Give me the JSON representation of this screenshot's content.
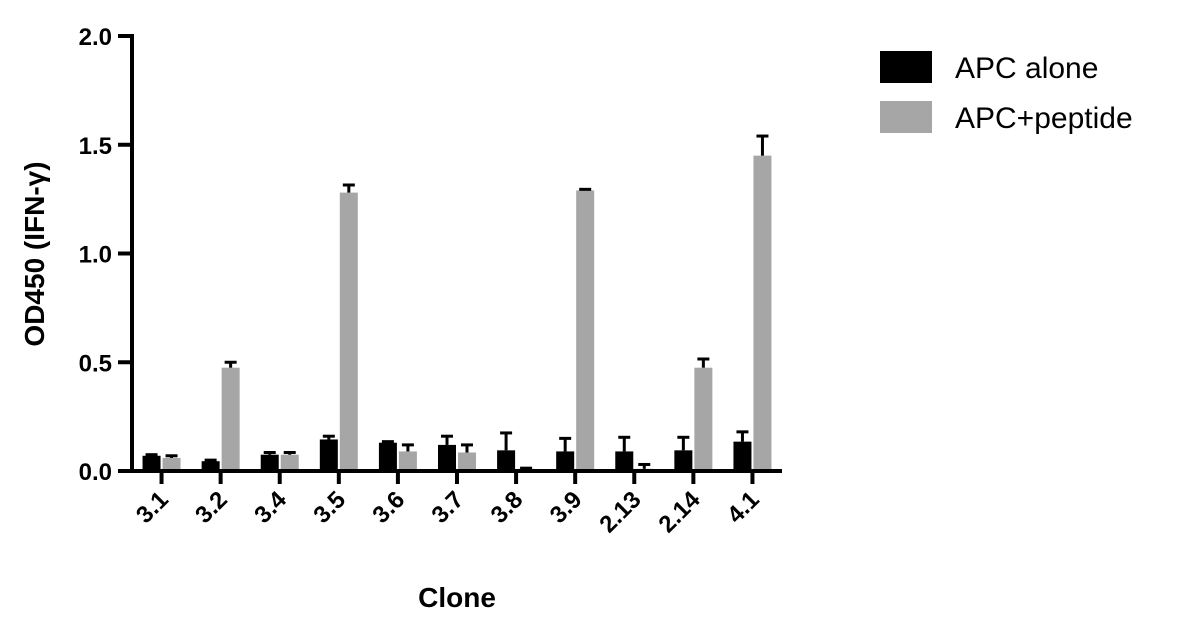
{
  "chart_data": {
    "type": "bar",
    "title": "",
    "xlabel": "Clone",
    "ylabel": "OD450 (IFN-γ)",
    "ylim": [
      0,
      2.0
    ],
    "yticks": [
      0.0,
      0.5,
      1.0,
      1.5,
      2.0
    ],
    "ytick_labels": [
      "0.0",
      "0.5",
      "1.0",
      "1.5",
      "2.0"
    ],
    "categories": [
      "3.1",
      "3.2",
      "3.4",
      "3.5",
      "3.6",
      "3.7",
      "3.8",
      "3.9",
      "2.13",
      "2.14",
      "4.1"
    ],
    "grid": false,
    "legend_position": "top-right",
    "error_bars": true,
    "series": [
      {
        "name": "APC alone",
        "color": "#000000",
        "values": [
          0.07,
          0.045,
          0.075,
          0.145,
          0.13,
          0.12,
          0.095,
          0.09,
          0.09,
          0.095,
          0.135
        ],
        "errors": [
          0.005,
          0.005,
          0.01,
          0.015,
          0.005,
          0.04,
          0.08,
          0.06,
          0.065,
          0.06,
          0.045
        ]
      },
      {
        "name": "APC+peptide",
        "color": "#a6a6a6",
        "values": [
          0.06,
          0.475,
          0.075,
          1.28,
          0.09,
          0.085,
          0.01,
          1.29,
          0.01,
          0.475,
          1.45
        ],
        "errors": [
          0.01,
          0.025,
          0.01,
          0.035,
          0.03,
          0.035,
          0.003,
          0.005,
          0.02,
          0.04,
          0.09
        ]
      }
    ]
  }
}
